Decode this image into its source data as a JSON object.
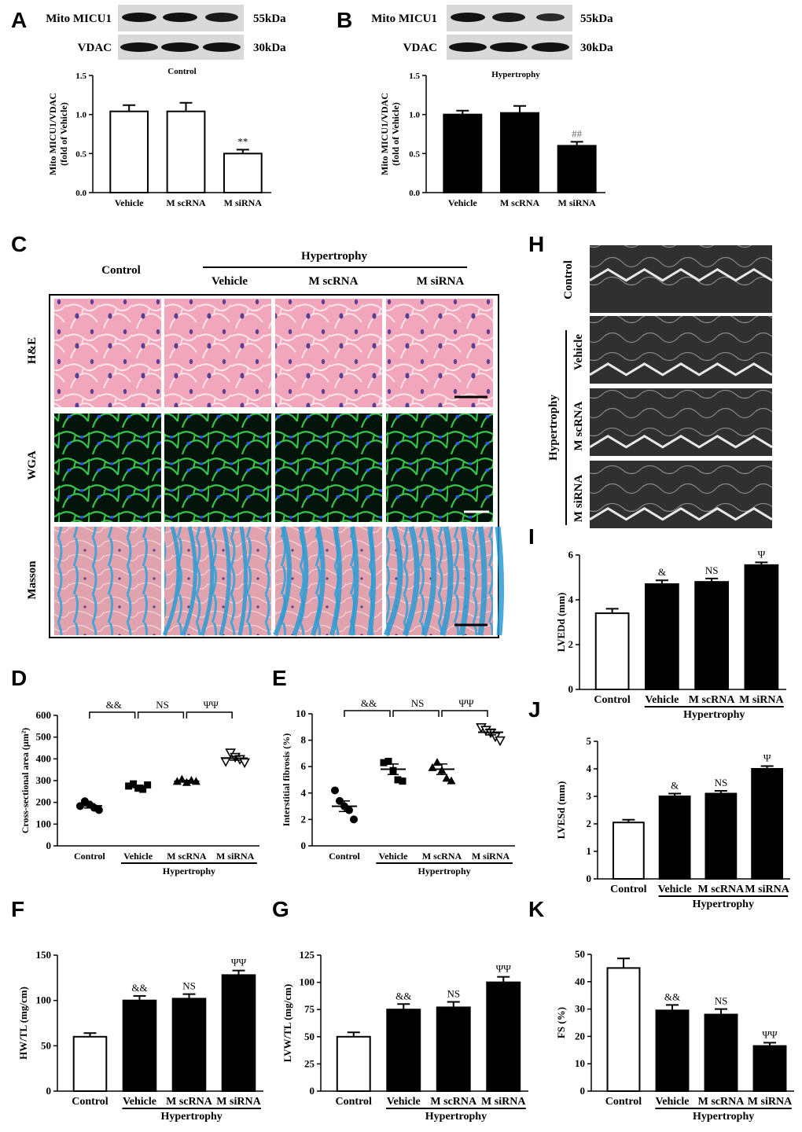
{
  "panel_labels": {
    "A": "A",
    "B": "B",
    "C": "C",
    "D": "D",
    "E": "E",
    "F": "F",
    "G": "G",
    "H": "H",
    "I": "I",
    "J": "J",
    "K": "K"
  },
  "colors": {
    "control": "#ffffff",
    "treatment": "#000000",
    "he_bg": "#ef9fb7",
    "wga_bg": "#04140a",
    "wga_fiber": "#36c24a",
    "wga_nuclei": "#3050ff",
    "masson_bg": "#e3a2ad",
    "masson_fiber": "#2f9fd3",
    "echo_bg": "#2a2a2a"
  },
  "blots": {
    "A": {
      "rows": [
        {
          "label": "Mito MICU1",
          "size": "55kDa"
        },
        {
          "label": "VDAC",
          "size": "30kDa"
        }
      ]
    },
    "B": {
      "rows": [
        {
          "label": "Mito MICU1",
          "size": "55kDa"
        },
        {
          "label": "VDAC",
          "size": "30kDa"
        }
      ]
    }
  },
  "histology": {
    "hypertrophy_label": "Hypertrophy",
    "columns": [
      "Control",
      "Vehicle",
      "M scRNA",
      "M siRNA"
    ],
    "rows": [
      "H&E",
      "WGA",
      "Masson"
    ]
  },
  "echo": {
    "control_label": "Control",
    "hypertrophy_label": "Hypertrophy",
    "rows": [
      "Vehicle",
      "M scRNA",
      "M siRNA"
    ]
  },
  "chart_data": [
    {
      "id": "A",
      "type": "bar",
      "title": "Control",
      "categories": [
        "Vehicle",
        "M scRNA",
        "M siRNA"
      ],
      "values": [
        1.04,
        1.04,
        0.5
      ],
      "errors": [
        0.08,
        0.11,
        0.05
      ],
      "annotations": [
        "",
        "",
        "**"
      ],
      "ylabel": "Mito MICU1/VDAC\n(fold of Vehicle)",
      "ylim": [
        0,
        1.5
      ],
      "yticks": [
        "0.0",
        "0.5",
        "1.0",
        "1.5"
      ],
      "fill": "control",
      "group_label": ""
    },
    {
      "id": "B",
      "type": "bar",
      "title": "Hypertrophy",
      "categories": [
        "Vehicle",
        "M scRNA",
        "M siRNA"
      ],
      "values": [
        1.0,
        1.02,
        0.6
      ],
      "errors": [
        0.05,
        0.09,
        0.05
      ],
      "annotations": [
        "",
        "",
        "##"
      ],
      "ylabel": "Mito MICU1/VDAC\n(fold of Vehicle)",
      "ylim": [
        0,
        1.5
      ],
      "yticks": [
        "0.0",
        "0.5",
        "1.0",
        "1.5"
      ],
      "fill": "treatment",
      "group_label": ""
    },
    {
      "id": "D",
      "type": "scatter",
      "categories": [
        "Control",
        "Vehicle",
        "M scRNA",
        "M siRNA"
      ],
      "points": [
        [
          183,
          205,
          190,
          175,
          165
        ],
        [
          275,
          285,
          265,
          260,
          280
        ],
        [
          295,
          305,
          290,
          300,
          295
        ],
        [
          390,
          430,
          410,
          400,
          385
        ]
      ],
      "means": [
        184,
        273,
        297,
        403
      ],
      "errors": [
        10,
        6,
        4,
        9
      ],
      "markers": [
        "circle",
        "square",
        "triangle",
        "triangle-down"
      ],
      "ylabel": "Cross-sectional area (μm²)",
      "ylim": [
        0,
        600
      ],
      "yticks": [
        "0",
        "100",
        "200",
        "300",
        "400",
        "500",
        "600"
      ],
      "brackets": [
        "&&",
        "NS",
        "ΨΨ"
      ],
      "group_label": "Hypertrophy"
    },
    {
      "id": "E",
      "type": "scatter",
      "categories": [
        "Control",
        "Vehicle",
        "M scRNA",
        "M siRNA"
      ],
      "points": [
        [
          4.2,
          3.4,
          3.0,
          2.7,
          2.0
        ],
        [
          6.3,
          6.4,
          5.7,
          5.0,
          4.9
        ],
        [
          5.9,
          6.3,
          5.7,
          5.1,
          4.9
        ],
        [
          9.0,
          8.8,
          8.6,
          8.3,
          8.0
        ]
      ],
      "means": [
        3.0,
        5.8,
        5.8,
        8.6
      ],
      "errors": [
        0.4,
        0.4,
        0.4,
        0.2
      ],
      "markers": [
        "circle",
        "square",
        "triangle",
        "triangle-down"
      ],
      "ylabel": "Interstitial fibrosis (%)",
      "ylim": [
        0,
        10
      ],
      "yticks": [
        "0",
        "2",
        "4",
        "6",
        "8",
        "10"
      ],
      "brackets": [
        "&&",
        "NS",
        "ΨΨ"
      ],
      "group_label": "Hypertrophy"
    },
    {
      "id": "F",
      "type": "bar",
      "categories": [
        "Control",
        "Vehicle",
        "M scRNA",
        "M siRNA"
      ],
      "values": [
        60,
        100,
        102,
        128
      ],
      "errors": [
        4,
        5,
        5,
        5
      ],
      "annotations": [
        "",
        "&&",
        "NS",
        "ΨΨ"
      ],
      "ylabel": "HW/TL (mg/cm)",
      "ylim": [
        0,
        150
      ],
      "yticks": [
        "0",
        "50",
        "100",
        "150"
      ],
      "fills": [
        "control",
        "treatment",
        "treatment",
        "treatment"
      ],
      "group_label": "Hypertrophy"
    },
    {
      "id": "G",
      "type": "bar",
      "categories": [
        "Control",
        "Vehicle",
        "M scRNA",
        "M siRNA"
      ],
      "values": [
        50,
        75,
        77,
        100
      ],
      "errors": [
        4,
        5,
        5,
        5
      ],
      "annotations": [
        "",
        "&&",
        "NS",
        "ΨΨ"
      ],
      "ylabel": "LVW/TL (mg/cm)",
      "ylim": [
        0,
        125
      ],
      "yticks": [
        "0",
        "25",
        "50",
        "75",
        "100",
        "125"
      ],
      "fills": [
        "control",
        "treatment",
        "treatment",
        "treatment"
      ],
      "group_label": "Hypertrophy"
    },
    {
      "id": "I",
      "type": "bar",
      "categories": [
        "Control",
        "Vehicle",
        "M scRNA",
        "M siRNA"
      ],
      "values": [
        3.4,
        4.7,
        4.8,
        5.55
      ],
      "errors": [
        0.2,
        0.17,
        0.15,
        0.12
      ],
      "annotations": [
        "",
        "&",
        "NS",
        "Ψ"
      ],
      "ylabel": "LVEDd (mm)",
      "ylim": [
        0,
        6
      ],
      "yticks": [
        "0",
        "2",
        "4",
        "6"
      ],
      "fills": [
        "control",
        "treatment",
        "treatment",
        "treatment"
      ],
      "group_label": "Hypertrophy"
    },
    {
      "id": "J",
      "type": "bar",
      "categories": [
        "Control",
        "Vehicle",
        "M scRNA",
        "M siRNA"
      ],
      "values": [
        2.05,
        3.0,
        3.1,
        4.0
      ],
      "errors": [
        0.1,
        0.1,
        0.1,
        0.1
      ],
      "annotations": [
        "",
        "&",
        "NS",
        "Ψ"
      ],
      "ylabel": "LVESd (mm)",
      "ylim": [
        0,
        5
      ],
      "yticks": [
        "0",
        "1",
        "2",
        "3",
        "4",
        "5"
      ],
      "fills": [
        "control",
        "treatment",
        "treatment",
        "treatment"
      ],
      "group_label": "Hypertrophy"
    },
    {
      "id": "K",
      "type": "bar",
      "categories": [
        "Control",
        "Vehicle",
        "M scRNA",
        "M siRNA"
      ],
      "values": [
        45,
        29.5,
        28,
        16.5
      ],
      "errors": [
        3.5,
        2,
        2,
        1.2
      ],
      "annotations": [
        "",
        "&&",
        "NS",
        "ΨΨ"
      ],
      "ylabel": "FS (%)",
      "ylim": [
        0,
        50
      ],
      "yticks": [
        "0",
        "10",
        "20",
        "30",
        "40",
        "50"
      ],
      "fills": [
        "control",
        "treatment",
        "treatment",
        "treatment"
      ],
      "group_label": "Hypertrophy"
    }
  ]
}
